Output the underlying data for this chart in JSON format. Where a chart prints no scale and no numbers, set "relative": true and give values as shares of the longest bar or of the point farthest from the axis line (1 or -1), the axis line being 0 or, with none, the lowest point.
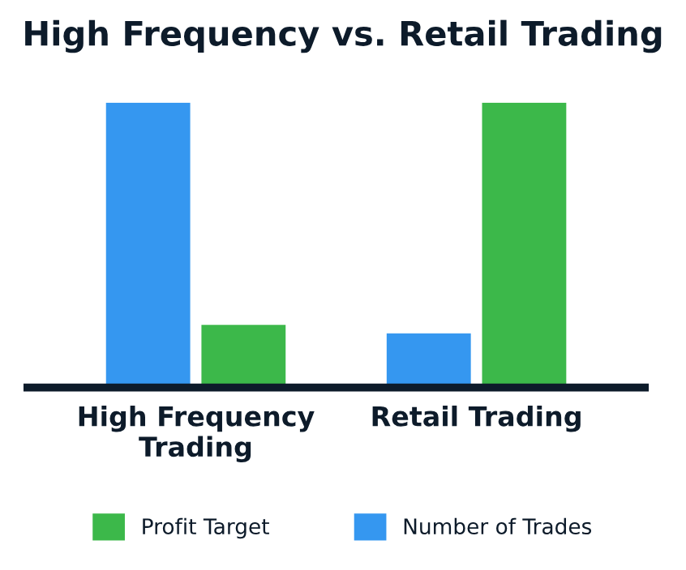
{
  "chart_data": {
    "type": "bar",
    "title": "High Frequency vs. Retail Trading",
    "categories": [
      "High Frequency\nTrading",
      "Retail Trading"
    ],
    "relative": true,
    "legend": "bottom",
    "grid": false,
    "series": [
      {
        "name": "Number of Trades",
        "color": "#3597f0",
        "values": [
          1,
          0.19
        ]
      },
      {
        "name": "Profit Target",
        "color": "#3cb84a",
        "values": [
          0.22,
          1
        ]
      }
    ]
  }
}
